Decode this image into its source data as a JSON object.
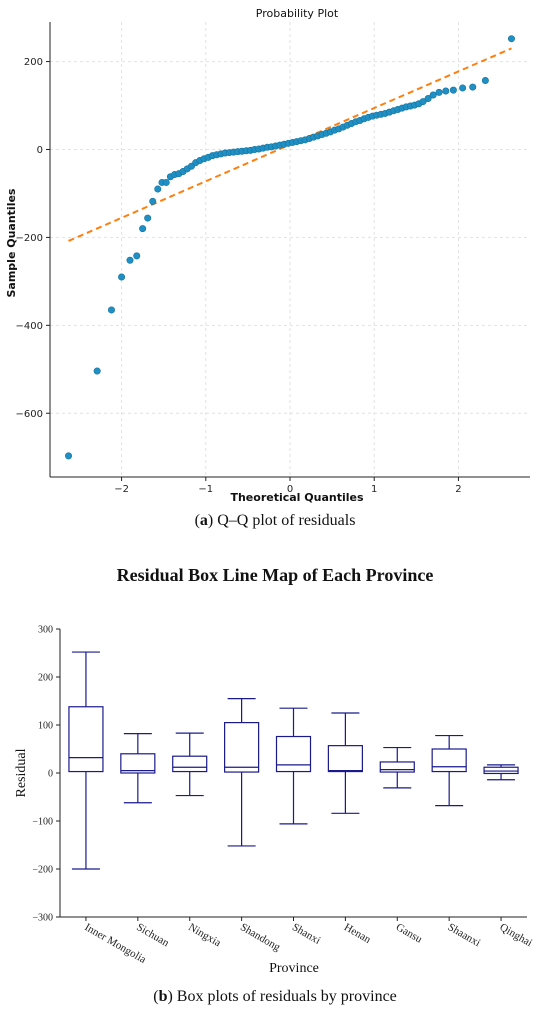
{
  "figure_a": {
    "caption_letter": "a",
    "caption_text": "Q–Q plot of residuals"
  },
  "figure_b": {
    "title": "Residual Box Line Map of Each Province",
    "caption_letter": "b",
    "caption_text": "Box plots of residuals by province"
  },
  "chart_data": [
    {
      "type": "scatter",
      "title": "Probability Plot",
      "xlabel": "Theoretical Quantiles",
      "ylabel": "Sample Quantiles",
      "xlim": [
        -2.85,
        2.85
      ],
      "ylim": [
        -745,
        290
      ],
      "xticks": [
        -2,
        -1,
        0,
        1,
        2
      ],
      "yticks": [
        -600,
        -400,
        -200,
        0,
        200
      ],
      "grid": true,
      "points": [
        [
          -2.63,
          -697
        ],
        [
          -2.29,
          -504
        ],
        [
          -2.12,
          -365
        ],
        [
          -2.0,
          -290
        ],
        [
          -1.9,
          -252
        ],
        [
          -1.82,
          -242
        ],
        [
          -1.75,
          -180
        ],
        [
          -1.69,
          -156
        ],
        [
          -1.63,
          -118
        ],
        [
          -1.57,
          -90
        ],
        [
          -1.52,
          -75
        ],
        [
          -1.47,
          -75
        ],
        [
          -1.42,
          -62
        ],
        [
          -1.37,
          -57
        ],
        [
          -1.32,
          -55
        ],
        [
          -1.27,
          -50
        ],
        [
          -1.22,
          -44
        ],
        [
          -1.17,
          -38
        ],
        [
          -1.12,
          -30
        ],
        [
          -1.07,
          -25
        ],
        [
          -1.02,
          -21
        ],
        [
          -0.97,
          -18
        ],
        [
          -0.92,
          -14
        ],
        [
          -0.87,
          -12
        ],
        [
          -0.82,
          -10
        ],
        [
          -0.77,
          -8
        ],
        [
          -0.72,
          -7
        ],
        [
          -0.67,
          -6
        ],
        [
          -0.62,
          -5
        ],
        [
          -0.57,
          -4
        ],
        [
          -0.52,
          -3
        ],
        [
          -0.47,
          -2
        ],
        [
          -0.42,
          0
        ],
        [
          -0.37,
          1
        ],
        [
          -0.32,
          3
        ],
        [
          -0.27,
          5
        ],
        [
          -0.22,
          6
        ],
        [
          -0.17,
          8
        ],
        [
          -0.12,
          10
        ],
        [
          -0.07,
          12
        ],
        [
          -0.02,
          14
        ],
        [
          0.03,
          16
        ],
        [
          0.08,
          18
        ],
        [
          0.13,
          20
        ],
        [
          0.18,
          22
        ],
        [
          0.23,
          25
        ],
        [
          0.28,
          28
        ],
        [
          0.33,
          31
        ],
        [
          0.38,
          34
        ],
        [
          0.43,
          37
        ],
        [
          0.48,
          40
        ],
        [
          0.53,
          44
        ],
        [
          0.58,
          47
        ],
        [
          0.63,
          51
        ],
        [
          0.68,
          55
        ],
        [
          0.73,
          59
        ],
        [
          0.78,
          63
        ],
        [
          0.83,
          66
        ],
        [
          0.88,
          70
        ],
        [
          0.93,
          73
        ],
        [
          0.98,
          76
        ],
        [
          1.03,
          78
        ],
        [
          1.08,
          80
        ],
        [
          1.13,
          82
        ],
        [
          1.18,
          85
        ],
        [
          1.23,
          88
        ],
        [
          1.28,
          91
        ],
        [
          1.33,
          94
        ],
        [
          1.38,
          97
        ],
        [
          1.43,
          99
        ],
        [
          1.48,
          101
        ],
        [
          1.53,
          104
        ],
        [
          1.58,
          109
        ],
        [
          1.64,
          116
        ],
        [
          1.7,
          124
        ],
        [
          1.77,
          130
        ],
        [
          1.85,
          133
        ],
        [
          1.94,
          135
        ],
        [
          2.05,
          140
        ],
        [
          2.17,
          142
        ],
        [
          2.32,
          157
        ],
        [
          2.63,
          252
        ]
      ],
      "fit_line": {
        "x": [
          -2.63,
          2.63
        ],
        "y": [
          -208,
          230
        ],
        "color": "#ff7f0e"
      },
      "marker_color": "#1f8fc4"
    },
    {
      "type": "box",
      "title": "Residual Box Line Map of Each Province",
      "xlabel": "Province",
      "ylabel": "Residual",
      "ylim": [
        -300,
        300
      ],
      "yticks": [
        -300,
        -200,
        -100,
        0,
        100,
        200,
        300
      ],
      "color": "#1a1a8c",
      "categories": [
        "Inner Mongolia",
        "Sichuan",
        "Ningxia",
        "Shandong",
        "Shanxi",
        "Henan",
        "Gansu",
        "Shaanxi",
        "Qinghai"
      ],
      "boxes": [
        {
          "min": -200,
          "q1": 3,
          "median": 32,
          "q3": 138,
          "max": 252
        },
        {
          "min": -62,
          "q1": 0,
          "median": 5,
          "q3": 40,
          "max": 82
        },
        {
          "min": -47,
          "q1": 3,
          "median": 12,
          "q3": 35,
          "max": 83
        },
        {
          "min": -152,
          "q1": 2,
          "median": 12,
          "q3": 105,
          "max": 155
        },
        {
          "min": -106,
          "q1": 3,
          "median": 17,
          "q3": 76,
          "max": 135
        },
        {
          "min": -84,
          "q1": 3,
          "median": 5,
          "q3": 57,
          "max": 125
        },
        {
          "min": -31,
          "q1": 2,
          "median": 7,
          "q3": 23,
          "max": 53
        },
        {
          "min": -68,
          "q1": 3,
          "median": 13,
          "q3": 50,
          "max": 78
        },
        {
          "min": -14,
          "q1": -1,
          "median": 4,
          "q3": 12,
          "max": 17
        }
      ]
    }
  ]
}
